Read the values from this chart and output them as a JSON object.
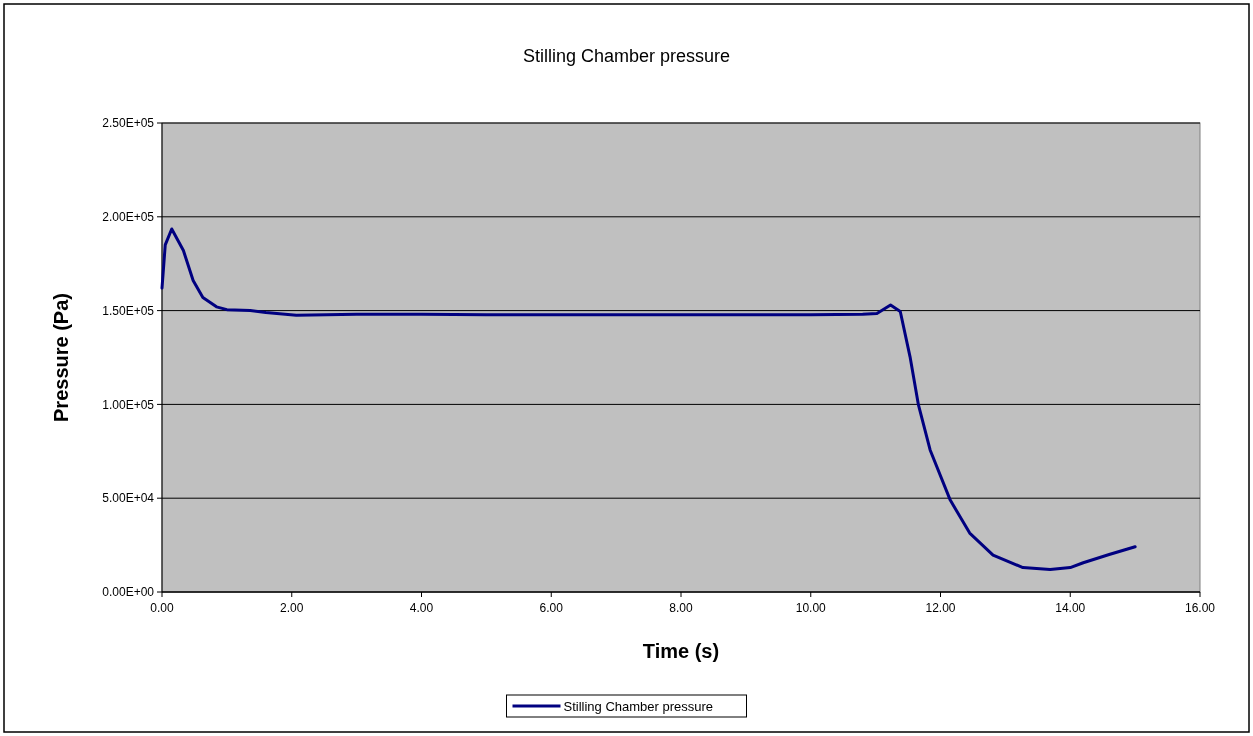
{
  "chart_data": {
    "type": "line",
    "title": "Stilling Chamber pressure",
    "xlabel": "Time (s)",
    "ylabel": "Pressure (Pa)",
    "xlim": [
      0,
      16
    ],
    "xticks": [
      {
        "value": 0,
        "label": "0.00"
      },
      {
        "value": 2,
        "label": "2.00"
      },
      {
        "value": 4,
        "label": "4.00"
      },
      {
        "value": 6,
        "label": "6.00"
      },
      {
        "value": 8,
        "label": "8.00"
      },
      {
        "value": 10,
        "label": "10.00"
      },
      {
        "value": 12,
        "label": "12.00"
      },
      {
        "value": 14,
        "label": "14.00"
      },
      {
        "value": 16,
        "label": "16.00"
      }
    ],
    "ylim": [
      0,
      250000
    ],
    "yticks": [
      {
        "value": 0,
        "label": "0.00E+00"
      },
      {
        "value": 50000,
        "label": "5.00E+04"
      },
      {
        "value": 100000,
        "label": "1.00E+05"
      },
      {
        "value": 150000,
        "label": "1.50E+05"
      },
      {
        "value": 200000,
        "label": "2.00E+05"
      },
      {
        "value": 250000,
        "label": "2.50E+05"
      }
    ],
    "grid": "y",
    "legend": "bottom",
    "marker": "none",
    "line_style": "solid",
    "series": [
      {
        "name": "Stilling Chamber pressure",
        "color": "#000080",
        "x": [
          0,
          0.05,
          0.15,
          0.33,
          0.48,
          0.63,
          0.84,
          1.0,
          1.36,
          1.6,
          2.07,
          3,
          4,
          5,
          6,
          7,
          8,
          9,
          10,
          10.8,
          11.02,
          11.23,
          11.38,
          11.53,
          11.66,
          11.84,
          12.15,
          12.45,
          12.81,
          13.27,
          13.69,
          14.0,
          14.2,
          14.6,
          15.0
        ],
        "values": [
          162000,
          185000,
          193500,
          182000,
          166000,
          157000,
          152000,
          150500,
          150000,
          149000,
          147500,
          148000,
          148000,
          147800,
          147800,
          147800,
          147800,
          147800,
          147800,
          148000,
          148500,
          153000,
          149500,
          125500,
          99700,
          75700,
          49000,
          31400,
          19700,
          13000,
          12000,
          13000,
          15600,
          20000,
          24100
        ]
      }
    ]
  }
}
